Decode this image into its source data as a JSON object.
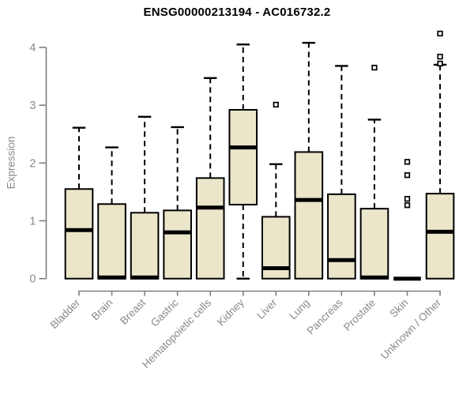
{
  "chart_data": {
    "type": "boxplot",
    "title": "ENSG00000213194 - AC016732.2",
    "ylabel": "Expression",
    "xlabel": "",
    "ylim": [
      0,
      4
    ],
    "yticks": [
      0,
      1,
      2,
      3,
      4
    ],
    "grid": false,
    "legend": null,
    "colors": {
      "box_fill": "#EBE6CA",
      "box_border": "#000000",
      "median": "#000000",
      "whisker": "#000000",
      "outlier_fill": "#FFFFFF",
      "axis": "#7F7F7F",
      "text": "#8A8A8A",
      "title": "#000000",
      "background": "#FFFFFF"
    },
    "categories": [
      "Bladder",
      "Brain",
      "Breast",
      "Gastric",
      "Hematopoietic cells",
      "Kidney",
      "Liver",
      "Lung",
      "Pancreas",
      "Prostate",
      "Skin",
      "Unknown / Other"
    ],
    "series": [
      {
        "label": "Bladder",
        "whislo": 0,
        "q1": 0,
        "med": 0.84,
        "q3": 1.55,
        "whishi": 2.61,
        "outliers": []
      },
      {
        "label": "Brain",
        "whislo": 0,
        "q1": 0,
        "med": 0.02,
        "q3": 1.29,
        "whishi": 2.27,
        "outliers": []
      },
      {
        "label": "Breast",
        "whislo": 0,
        "q1": 0,
        "med": 0.02,
        "q3": 1.14,
        "whishi": 2.8,
        "outliers": []
      },
      {
        "label": "Gastric",
        "whislo": 0,
        "q1": 0,
        "med": 0.8,
        "q3": 1.18,
        "whishi": 2.62,
        "outliers": []
      },
      {
        "label": "Hematopoietic cells",
        "whislo": 0,
        "q1": 0,
        "med": 1.23,
        "q3": 1.74,
        "whishi": 3.47,
        "outliers": []
      },
      {
        "label": "Kidney",
        "whislo": 0,
        "q1": 1.28,
        "med": 2.27,
        "q3": 2.92,
        "whishi": 4.05,
        "outliers": []
      },
      {
        "label": "Liver",
        "whislo": 0,
        "q1": 0,
        "med": 0.18,
        "q3": 1.07,
        "whishi": 1.98,
        "outliers": [
          3.01
        ]
      },
      {
        "label": "Lung",
        "whislo": 0,
        "q1": 0,
        "med": 1.36,
        "q3": 2.19,
        "whishi": 4.08,
        "outliers": []
      },
      {
        "label": "Pancreas",
        "whislo": 0,
        "q1": 0,
        "med": 0.32,
        "q3": 1.46,
        "whishi": 3.68,
        "outliers": []
      },
      {
        "label": "Prostate",
        "whislo": 0,
        "q1": 0,
        "med": 0.02,
        "q3": 1.21,
        "whishi": 2.75,
        "outliers": [
          3.65
        ]
      },
      {
        "label": "Skin",
        "whislo": 0,
        "q1": 0,
        "med": 0,
        "q3": 0,
        "whishi": 0,
        "outliers": [
          2.02,
          1.79,
          1.38,
          1.27
        ]
      },
      {
        "label": "Unknown / Other",
        "whislo": 0,
        "q1": 0,
        "med": 0.81,
        "q3": 1.47,
        "whishi": 3.7,
        "outliers": [
          4.24,
          3.84,
          3.72
        ]
      }
    ]
  }
}
